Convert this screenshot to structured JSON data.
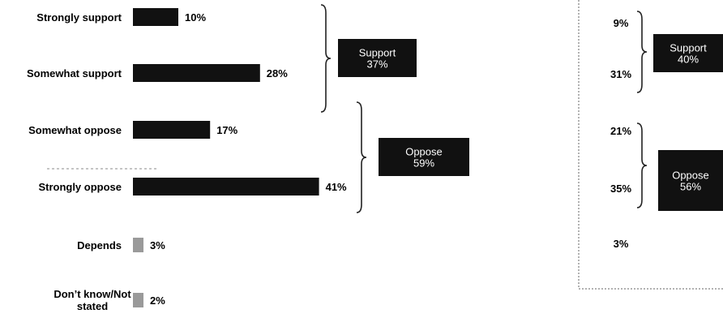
{
  "chart_data": [
    {
      "type": "bar",
      "categories": [
        "Strongly support",
        "Somewhat support",
        "Somewhat oppose",
        "Strongly oppose",
        "Depends",
        "Don’t know/Not stated"
      ],
      "values": [
        10,
        28,
        17,
        41,
        3,
        2
      ],
      "value_labels": [
        "10%",
        "28%",
        "17%",
        "41%",
        "3%",
        "2%"
      ],
      "groups": [
        {
          "label": "Support",
          "value": 37,
          "value_label": "37%",
          "categories": [
            "Strongly support",
            "Somewhat support"
          ]
        },
        {
          "label": "Oppose",
          "value": 59,
          "value_label": "59%",
          "categories": [
            "Somewhat oppose",
            "Strongly oppose"
          ]
        }
      ],
      "colors": {
        "bar": "#111111",
        "minor_bar": "#9a9a9a",
        "group_box": "#111111",
        "group_text": "#ffffff"
      },
      "title": "",
      "xlabel": "",
      "ylabel": "",
      "grid": false
    },
    {
      "type": "table",
      "categories": [
        "Strongly support",
        "Somewhat support",
        "Somewhat oppose",
        "Strongly oppose",
        "Depends"
      ],
      "values": [
        9,
        31,
        21,
        35,
        3
      ],
      "value_labels": [
        "9%",
        "31%",
        "21%",
        "35%",
        "3%"
      ],
      "groups": [
        {
          "label": "Support",
          "value": 40,
          "value_label": "40%"
        },
        {
          "label": "Oppose",
          "value": 56,
          "value_label": "56%"
        }
      ],
      "title": "",
      "grid": false
    }
  ]
}
